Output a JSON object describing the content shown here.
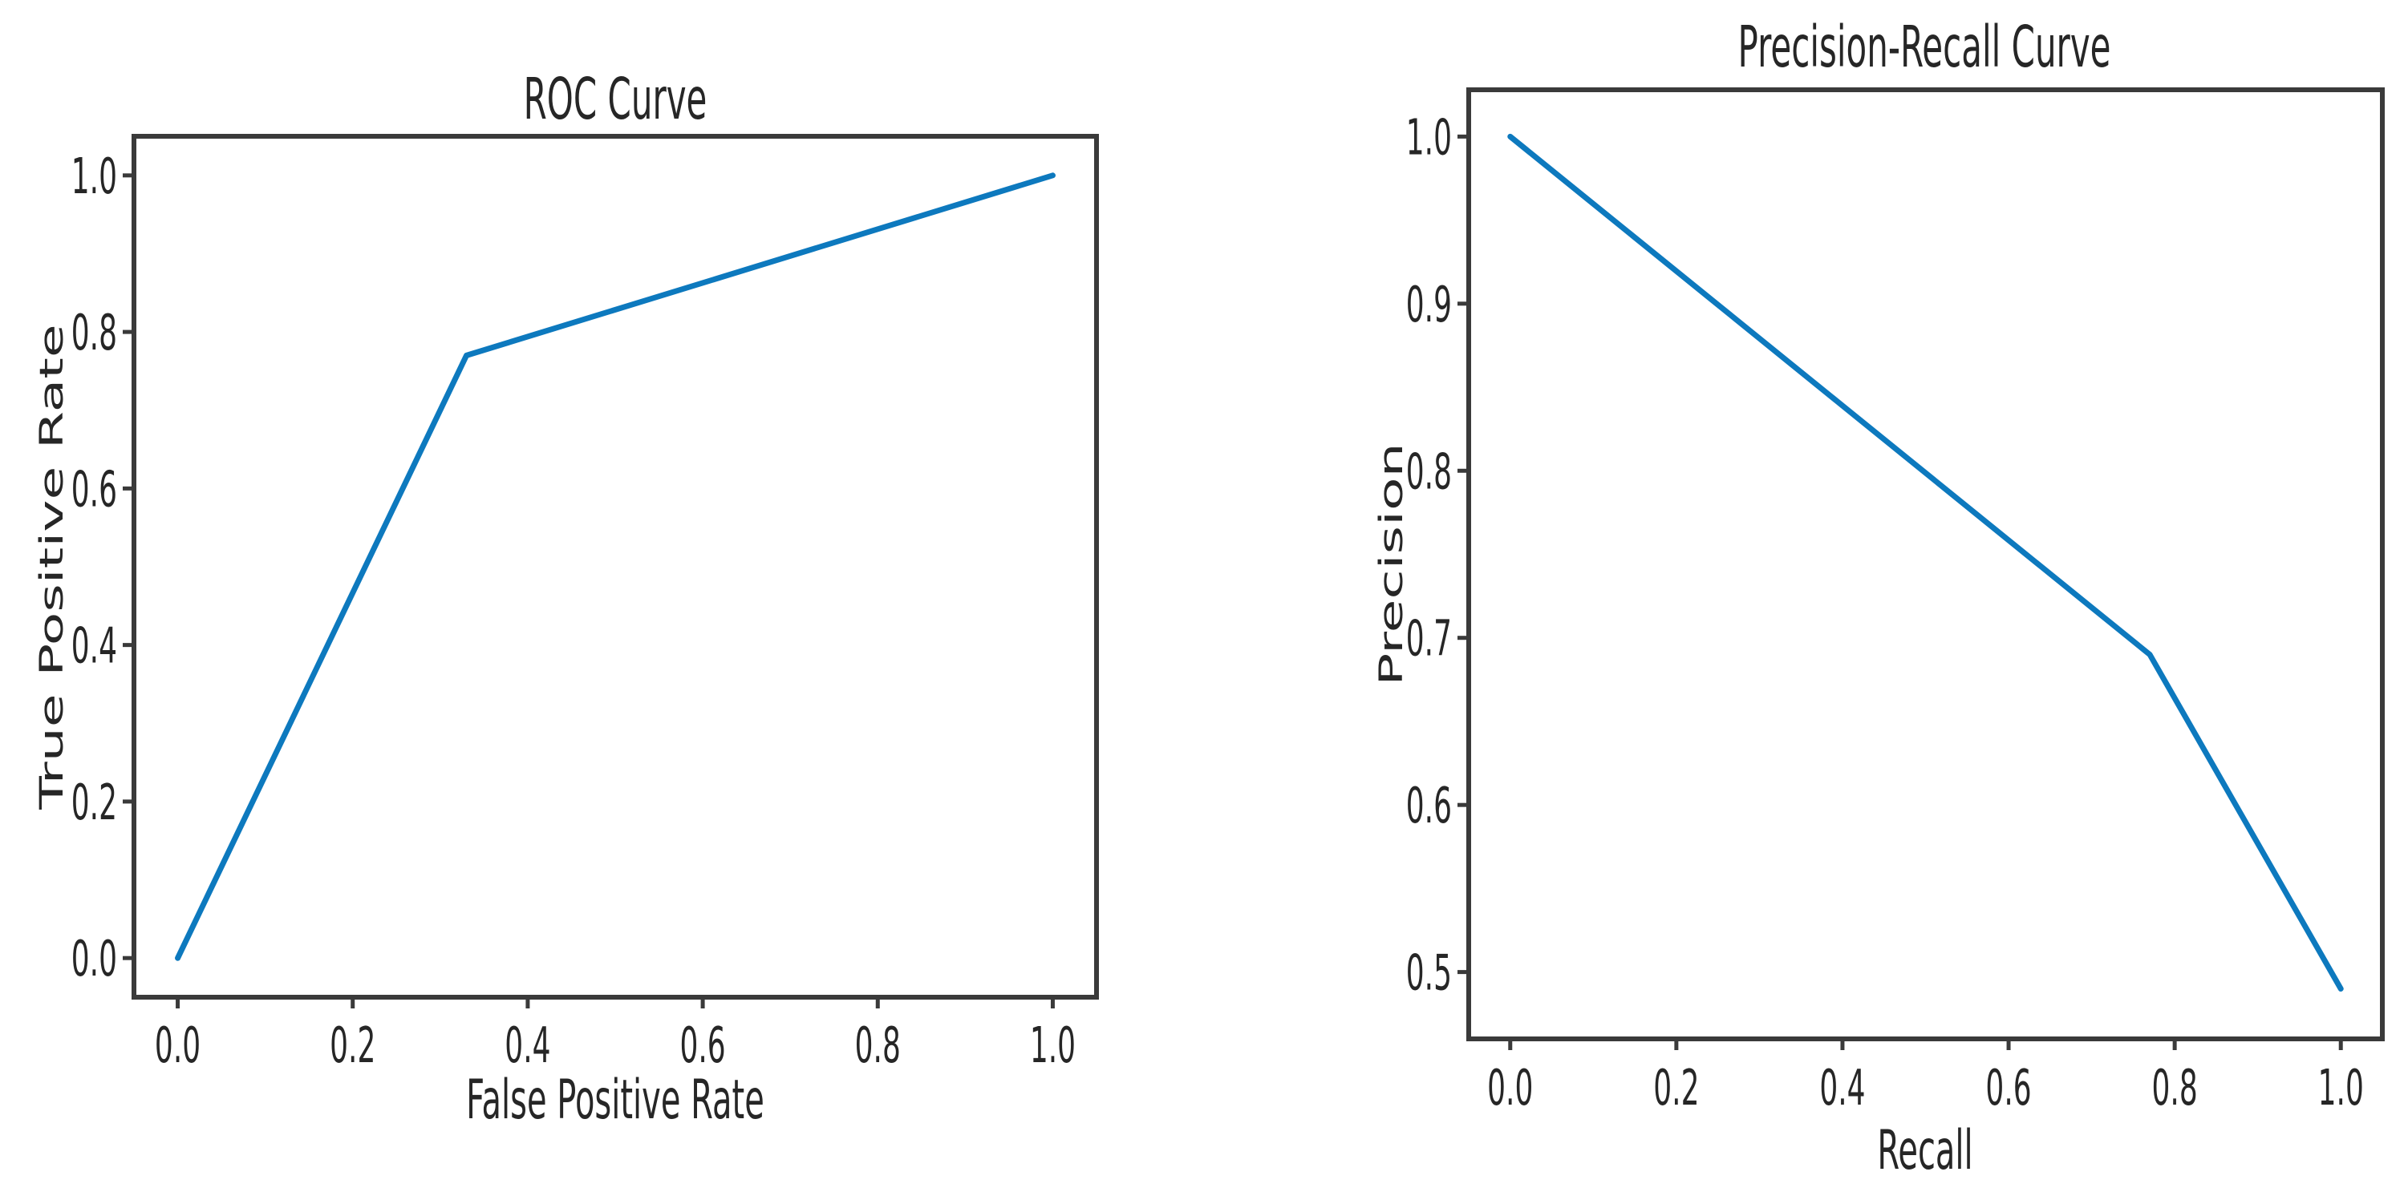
{
  "figure": {
    "background": "#ffffff",
    "spine_color": "#3a3a3a",
    "text_color": "#262626",
    "accent_line_color": "#0d79be"
  },
  "chart_data": [
    {
      "type": "line",
      "title": "ROC Curve",
      "xlabel": "False Positive Rate",
      "ylabel": "True Positive Rate",
      "xticks": [
        0.0,
        0.2,
        0.4,
        0.6,
        0.8,
        1.0
      ],
      "yticks": [
        0.0,
        0.2,
        0.4,
        0.6,
        0.8,
        1.0
      ],
      "xlim": [
        -0.05,
        1.05
      ],
      "ylim": [
        -0.05,
        1.05
      ],
      "grid": false,
      "legend": "none",
      "line_color": "#0d79be",
      "series": [
        {
          "name": "roc-curve",
          "x": [
            0.0,
            0.33,
            1.0
          ],
          "y": [
            0.0,
            0.77,
            1.0
          ]
        }
      ]
    },
    {
      "type": "line",
      "title": "Precision-Recall Curve",
      "xlabel": "Recall",
      "ylabel": "Precision",
      "xticks": [
        0.0,
        0.2,
        0.4,
        0.6,
        0.8,
        1.0
      ],
      "yticks": [
        0.5,
        0.6,
        0.7,
        0.8,
        0.9,
        1.0
      ],
      "xlim": [
        -0.05,
        1.05
      ],
      "ylim": [
        0.46,
        1.028
      ],
      "grid": false,
      "legend": "none",
      "line_color": "#0d79be",
      "series": [
        {
          "name": "precision-recall-curve",
          "x": [
            0.0,
            0.77,
            1.0
          ],
          "y": [
            1.0,
            0.69,
            0.49
          ]
        }
      ]
    }
  ]
}
